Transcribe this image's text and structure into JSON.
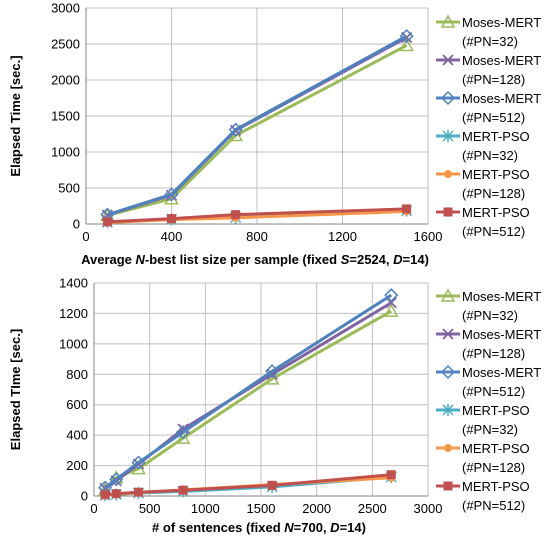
{
  "chart_data": [
    {
      "type": "line",
      "xlabel_parts": [
        {
          "t": "Average ",
          "i": false
        },
        {
          "t": "N",
          "i": true
        },
        {
          "t": "-best list size per sample (fixed ",
          "i": false
        },
        {
          "t": "S",
          "i": true
        },
        {
          "t": "=2524, ",
          "i": false
        },
        {
          "t": "D",
          "i": true
        },
        {
          "t": "=14)",
          "i": false
        }
      ],
      "ylabel": "Elapsed Time [sec.]",
      "xlim": [
        0,
        1600
      ],
      "ylim": [
        0,
        3000
      ],
      "xticks": [
        0,
        400,
        800,
        1200,
        1600
      ],
      "yticks": [
        0,
        500,
        1000,
        1500,
        2000,
        2500,
        3000
      ],
      "grid": true,
      "legend_position": "right",
      "series": [
        {
          "name": "Moses-MERT",
          "name2": "(#PN=32)",
          "color": "#9bbb59",
          "marker": "triangle",
          "points": [
            [
              100,
              120
            ],
            [
              400,
              350
            ],
            [
              700,
              1230
            ],
            [
              1500,
              2480
            ]
          ]
        },
        {
          "name": "Moses-MERT",
          "name2": "(#PN=128)",
          "color": "#8064a2",
          "marker": "x",
          "points": [
            [
              100,
              125
            ],
            [
              400,
              400
            ],
            [
              700,
              1300
            ],
            [
              1500,
              2590
            ]
          ]
        },
        {
          "name": "Moses-MERT",
          "name2": "(#PN=512)",
          "color": "#4f81bd",
          "marker": "diamond",
          "points": [
            [
              100,
              130
            ],
            [
              400,
              410
            ],
            [
              700,
              1310
            ],
            [
              1500,
              2610
            ]
          ]
        },
        {
          "name": "MERT-PSO",
          "name2": "(#PN=32)",
          "color": "#4bacc6",
          "marker": "star",
          "points": [
            [
              100,
              25
            ],
            [
              400,
              65
            ],
            [
              700,
              90
            ],
            [
              1500,
              185
            ]
          ]
        },
        {
          "name": "MERT-PSO",
          "name2": "(#PN=128)",
          "color": "#f79646",
          "marker": "circle",
          "points": [
            [
              100,
              20
            ],
            [
              400,
              60
            ],
            [
              700,
              85
            ],
            [
              1500,
              175
            ]
          ]
        },
        {
          "name": "MERT-PSO",
          "name2": "(#PN=512)",
          "color": "#c0504d",
          "marker": "square",
          "points": [
            [
              100,
              30
            ],
            [
              400,
              75
            ],
            [
              700,
              130
            ],
            [
              1500,
              210
            ]
          ]
        }
      ]
    },
    {
      "type": "line",
      "xlabel_parts": [
        {
          "t": "# of sentences (fixed ",
          "i": false
        },
        {
          "t": "N",
          "i": true
        },
        {
          "t": "=700, ",
          "i": false
        },
        {
          "t": "D",
          "i": true
        },
        {
          "t": "=14)",
          "i": false
        }
      ],
      "ylabel": "Elapsed TIme [sec.]",
      "xlim": [
        0,
        3000
      ],
      "ylim": [
        0,
        1400
      ],
      "xticks": [
        0,
        500,
        1000,
        1500,
        2000,
        2500,
        3000
      ],
      "yticks": [
        0,
        200,
        400,
        600,
        800,
        1000,
        1200,
        1400
      ],
      "grid": true,
      "legend_position": "right",
      "series": [
        {
          "name": "Moses-MERT",
          "name2": "(#PN=32)",
          "color": "#9bbb59",
          "marker": "triangle",
          "points": [
            [
              100,
              40
            ],
            [
              200,
              120
            ],
            [
              400,
              180
            ],
            [
              800,
              380
            ],
            [
              1600,
              770
            ],
            [
              2670,
              1215
            ]
          ]
        },
        {
          "name": "Moses-MERT",
          "name2": "(#PN=128)",
          "color": "#8064a2",
          "marker": "x",
          "points": [
            [
              100,
              50
            ],
            [
              200,
              100
            ],
            [
              400,
              210
            ],
            [
              800,
              440
            ],
            [
              1600,
              800
            ],
            [
              2670,
              1270
            ]
          ]
        },
        {
          "name": "Moses-MERT",
          "name2": "(#PN=512)",
          "color": "#4f81bd",
          "marker": "diamond",
          "points": [
            [
              100,
              55
            ],
            [
              200,
              110
            ],
            [
              400,
              220
            ],
            [
              800,
              420
            ],
            [
              1600,
              820
            ],
            [
              2670,
              1320
            ]
          ]
        },
        {
          "name": "MERT-PSO",
          "name2": "(#PN=32)",
          "color": "#4bacc6",
          "marker": "star",
          "points": [
            [
              100,
              5
            ],
            [
              200,
              10
            ],
            [
              400,
              20
            ],
            [
              800,
              30
            ],
            [
              1600,
              60
            ],
            [
              2670,
              125
            ]
          ]
        },
        {
          "name": "MERT-PSO",
          "name2": "(#PN=128)",
          "color": "#f79646",
          "marker": "circle",
          "points": [
            [
              100,
              5
            ],
            [
              200,
              12
            ],
            [
              400,
              22
            ],
            [
              800,
              40
            ],
            [
              1600,
              75
            ],
            [
              2670,
              120
            ]
          ]
        },
        {
          "name": "MERT-PSO",
          "name2": "(#PN=512)",
          "color": "#c0504d",
          "marker": "square",
          "points": [
            [
              100,
              8
            ],
            [
              200,
              15
            ],
            [
              400,
              25
            ],
            [
              800,
              38
            ],
            [
              1600,
              70
            ],
            [
              2670,
              140
            ]
          ]
        }
      ]
    }
  ]
}
